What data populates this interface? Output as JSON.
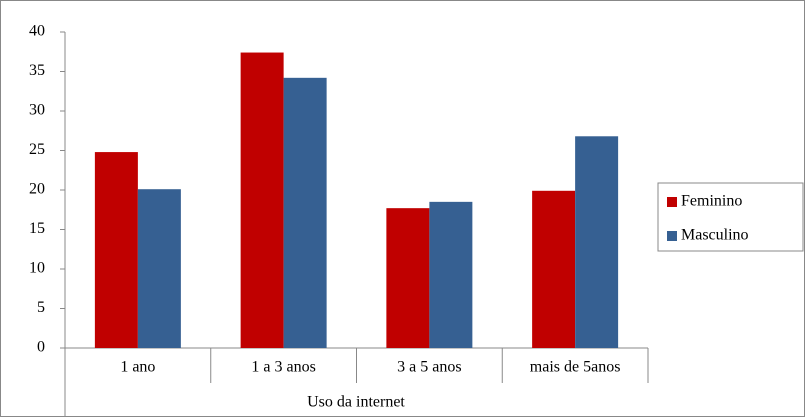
{
  "chart_data": {
    "type": "bar",
    "categories": [
      "1 ano",
      "1 a 3 anos",
      "3 a 5 anos",
      "mais de 5anos"
    ],
    "x_label": "Uso da internet",
    "series": [
      {
        "name": "Feminino",
        "color": "#c00000",
        "values": [
          24.8,
          37.4,
          17.7,
          19.9
        ]
      },
      {
        "name": "Masculino",
        "color": "#366092",
        "values": [
          20.1,
          34.2,
          18.5,
          26.8
        ]
      }
    ],
    "ylim": [
      0,
      40
    ],
    "yticks": [
      0,
      5,
      10,
      15,
      20,
      25,
      30,
      35,
      40
    ],
    "grid": false,
    "legend": "right"
  }
}
